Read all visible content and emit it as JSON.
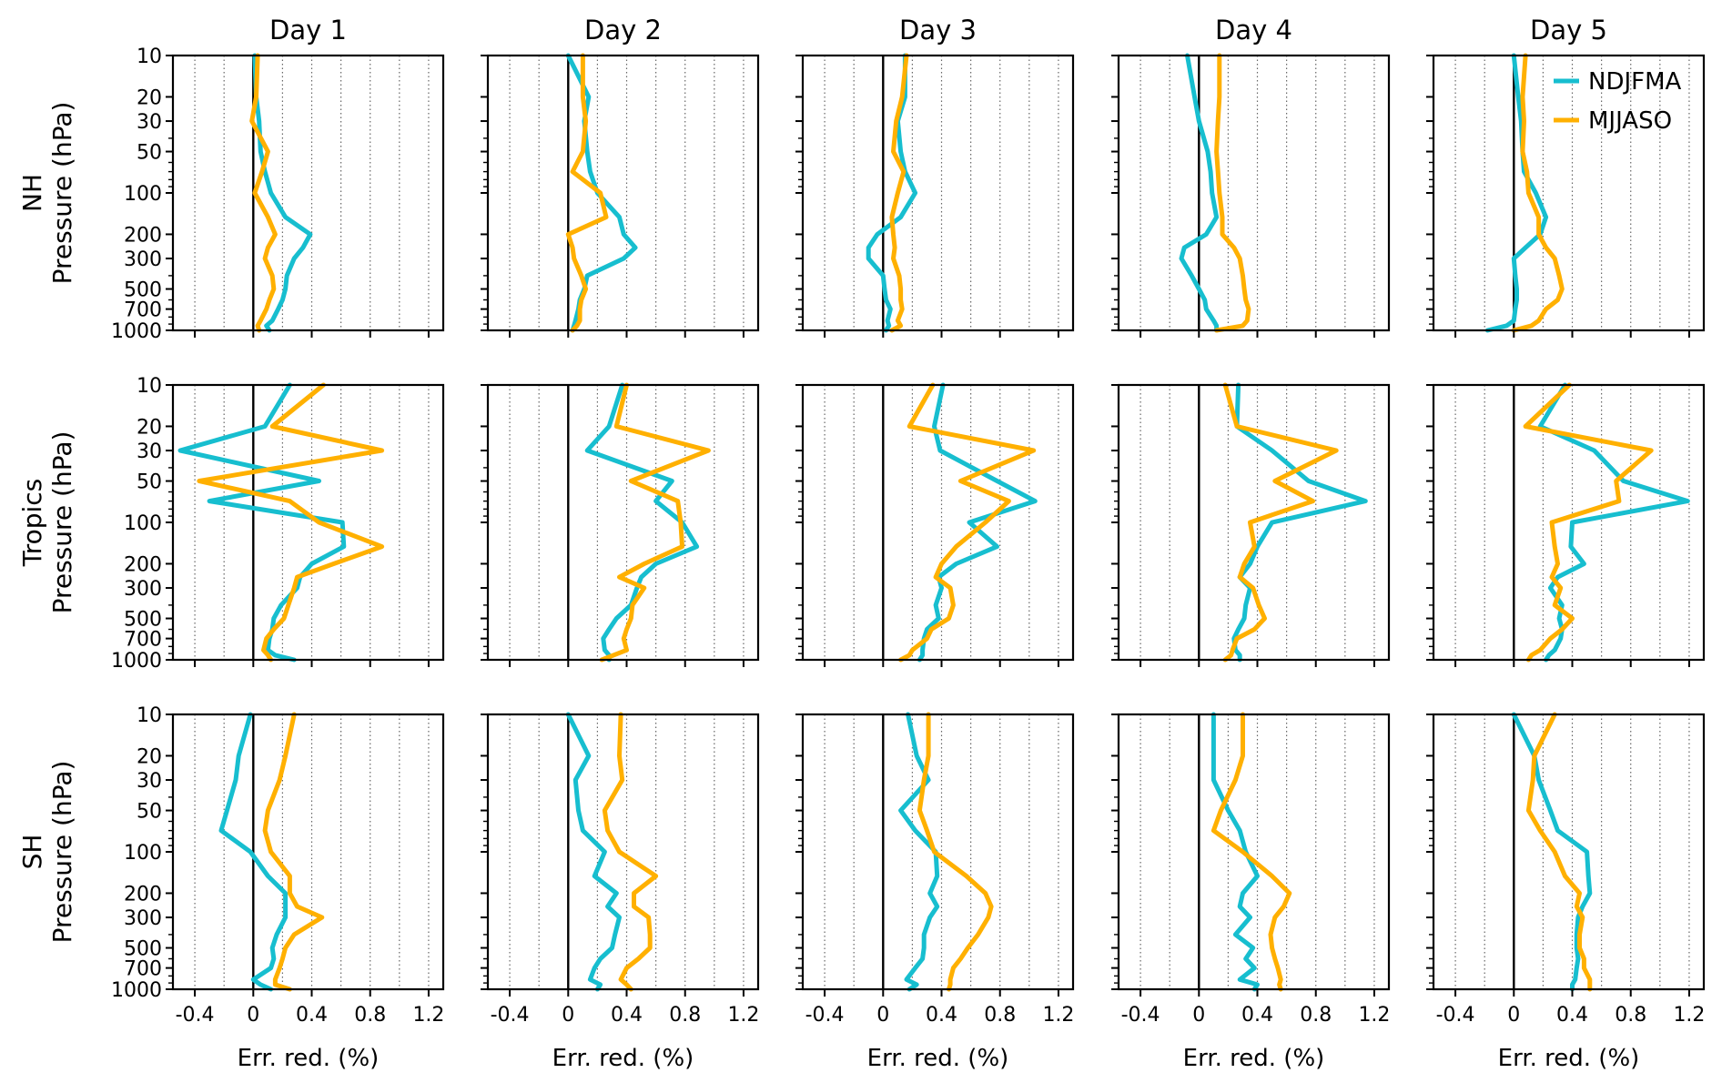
{
  "chart_data": {
    "type": "line",
    "column_titles": [
      "Day 1",
      "Day 2",
      "Day 3",
      "Day 4",
      "Day 5"
    ],
    "row_labels": [
      {
        "region": "NH",
        "ylabel": "Pressure (hPa)"
      },
      {
        "region": "Tropics",
        "ylabel": "Pressure (hPa)"
      },
      {
        "region": "SH",
        "ylabel": "Pressure (hPa)"
      }
    ],
    "xlabel": "Err. red. (%)",
    "xlim": [
      -0.55,
      1.3
    ],
    "x_ticks": [
      -0.4,
      0,
      0.4,
      0.8,
      1.2
    ],
    "x_tick_labels": [
      "-0.4",
      "0",
      "0.4",
      "0.8",
      "1.2"
    ],
    "x_grid_dotted": [
      -0.4,
      -0.2,
      0.2,
      0.4,
      0.6,
      0.8,
      1.0,
      1.2
    ],
    "ylim": [
      1000,
      10
    ],
    "y_scale": "log",
    "y_ticks": [
      10,
      20,
      30,
      50,
      100,
      200,
      300,
      500,
      700,
      1000
    ],
    "y_tick_labels": [
      "10",
      "20",
      "30",
      "50",
      "100",
      "200",
      "300",
      "500",
      "700",
      "1000"
    ],
    "legend": {
      "placement": "top-right of Day 5 NH panel",
      "entries": [
        {
          "name": "NDJFMA",
          "color": "#17becf"
        },
        {
          "name": "MJJASO",
          "color": "#ffb000"
        }
      ]
    },
    "levels": [
      10,
      20,
      30,
      50,
      70,
      100,
      150,
      200,
      250,
      300,
      400,
      500,
      600,
      700,
      850,
      925,
      1000
    ],
    "panels": [
      {
        "region": "NH",
        "day": "Day 1",
        "NDJFMA": [
          0.01,
          0.02,
          0.04,
          0.05,
          0.08,
          0.12,
          0.22,
          0.39,
          0.34,
          0.28,
          0.23,
          0.22,
          0.2,
          0.17,
          0.13,
          0.09,
          0.11
        ],
        "MJJASO": [
          0.03,
          0.02,
          -0.01,
          0.1,
          0.06,
          0.01,
          0.1,
          0.15,
          0.1,
          0.08,
          0.13,
          0.14,
          0.11,
          0.09,
          0.05,
          0.03,
          0.04
        ]
      },
      {
        "region": "NH",
        "day": "Day 2",
        "NDJFMA": [
          0.0,
          0.14,
          0.11,
          0.13,
          0.15,
          0.2,
          0.35,
          0.38,
          0.46,
          0.38,
          0.13,
          0.11,
          0.08,
          0.07,
          0.05,
          0.04,
          0.03
        ],
        "MJJASO": [
          0.1,
          0.1,
          0.12,
          0.1,
          0.03,
          0.22,
          0.26,
          0.0,
          0.03,
          0.04,
          0.09,
          0.12,
          0.09,
          0.08,
          0.08,
          0.06,
          0.03
        ]
      },
      {
        "region": "NH",
        "day": "Day 3",
        "NDJFMA": [
          0.15,
          0.15,
          0.1,
          0.12,
          0.15,
          0.22,
          0.12,
          -0.04,
          -0.1,
          -0.1,
          0.0,
          0.01,
          0.02,
          0.05,
          0.03,
          0.04,
          0.02
        ],
        "MJJASO": [
          0.16,
          0.13,
          0.09,
          0.07,
          0.14,
          0.1,
          0.06,
          0.07,
          0.08,
          0.07,
          0.11,
          0.12,
          0.12,
          0.13,
          0.1,
          0.12,
          0.06
        ]
      },
      {
        "region": "NH",
        "day": "Day 4",
        "NDJFMA": [
          -0.08,
          -0.03,
          0.0,
          0.06,
          0.08,
          0.09,
          0.12,
          0.05,
          -0.1,
          -0.12,
          -0.05,
          0.0,
          0.04,
          0.05,
          0.1,
          0.12,
          0.12
        ],
        "MJJASO": [
          0.14,
          0.14,
          0.13,
          0.12,
          0.13,
          0.14,
          0.16,
          0.16,
          0.24,
          0.28,
          0.3,
          0.31,
          0.32,
          0.34,
          0.33,
          0.3,
          0.12
        ]
      },
      {
        "region": "NH",
        "day": "Day 5",
        "NDJFMA": [
          0.0,
          0.03,
          0.05,
          0.06,
          0.07,
          0.15,
          0.22,
          0.18,
          0.08,
          0.0,
          0.01,
          0.02,
          0.02,
          0.01,
          0.0,
          -0.05,
          -0.18
        ],
        "MJJASO": [
          0.08,
          0.06,
          0.07,
          0.06,
          0.09,
          0.1,
          0.17,
          0.17,
          0.22,
          0.28,
          0.31,
          0.33,
          0.3,
          0.22,
          0.17,
          0.12,
          0.0
        ]
      },
      {
        "region": "Tropics",
        "day": "Day 1",
        "NDJFMA": [
          0.25,
          0.08,
          -0.5,
          0.45,
          -0.3,
          0.61,
          0.62,
          0.4,
          0.32,
          0.3,
          0.19,
          0.14,
          0.13,
          0.11,
          0.1,
          0.15,
          0.28
        ],
        "MJJASO": [
          0.48,
          0.13,
          0.88,
          -0.37,
          0.25,
          0.45,
          0.88,
          0.55,
          0.3,
          0.28,
          0.24,
          0.21,
          0.14,
          0.09,
          0.07,
          0.1,
          0.12
        ]
      },
      {
        "region": "Tropics",
        "day": "Day 2",
        "NDJFMA": [
          0.37,
          0.28,
          0.13,
          0.71,
          0.6,
          0.78,
          0.88,
          0.6,
          0.5,
          0.47,
          0.43,
          0.33,
          0.28,
          0.24,
          0.25,
          0.28,
          0.28
        ],
        "MJJASO": [
          0.4,
          0.33,
          0.96,
          0.43,
          0.75,
          0.77,
          0.78,
          0.52,
          0.35,
          0.52,
          0.44,
          0.43,
          0.4,
          0.38,
          0.4,
          0.31,
          0.23
        ]
      },
      {
        "region": "Tropics",
        "day": "Day 3",
        "NDJFMA": [
          0.41,
          0.35,
          0.39,
          0.78,
          1.04,
          0.59,
          0.78,
          0.5,
          0.38,
          0.4,
          0.36,
          0.38,
          0.3,
          0.28,
          0.27,
          0.27,
          0.25
        ],
        "MJJASO": [
          0.34,
          0.18,
          1.03,
          0.53,
          0.86,
          0.7,
          0.5,
          0.4,
          0.36,
          0.46,
          0.48,
          0.45,
          0.33,
          0.3,
          0.2,
          0.18,
          0.12
        ]
      },
      {
        "region": "Tropics",
        "day": "Day 4",
        "NDJFMA": [
          0.27,
          0.26,
          0.5,
          0.75,
          1.14,
          0.5,
          0.4,
          0.35,
          0.28,
          0.35,
          0.32,
          0.31,
          0.27,
          0.24,
          0.25,
          0.28,
          0.28
        ],
        "MJJASO": [
          0.18,
          0.26,
          0.94,
          0.52,
          0.78,
          0.35,
          0.38,
          0.31,
          0.28,
          0.37,
          0.41,
          0.45,
          0.38,
          0.26,
          0.23,
          0.22,
          0.18
        ]
      },
      {
        "region": "Tropics",
        "day": "Day 5",
        "NDJFMA": [
          0.35,
          0.18,
          0.55,
          0.75,
          1.19,
          0.4,
          0.39,
          0.48,
          0.3,
          0.25,
          0.33,
          0.31,
          0.33,
          0.32,
          0.28,
          0.24,
          0.22
        ],
        "MJJASO": [
          0.38,
          0.08,
          0.94,
          0.7,
          0.72,
          0.26,
          0.28,
          0.3,
          0.26,
          0.32,
          0.28,
          0.4,
          0.33,
          0.25,
          0.18,
          0.12,
          0.1
        ]
      },
      {
        "region": "SH",
        "day": "Day 1",
        "NDJFMA": [
          -0.02,
          -0.1,
          -0.12,
          -0.18,
          -0.22,
          -0.02,
          0.1,
          0.22,
          0.22,
          0.22,
          0.16,
          0.13,
          0.14,
          0.12,
          0.0,
          0.05,
          0.12
        ],
        "MJJASO": [
          0.28,
          0.22,
          0.18,
          0.1,
          0.08,
          0.12,
          0.25,
          0.25,
          0.3,
          0.47,
          0.28,
          0.22,
          0.2,
          0.18,
          0.15,
          0.15,
          0.25
        ]
      },
      {
        "region": "SH",
        "day": "Day 2",
        "NDJFMA": [
          0.0,
          0.14,
          0.05,
          0.07,
          0.1,
          0.25,
          0.18,
          0.33,
          0.27,
          0.35,
          0.32,
          0.3,
          0.22,
          0.18,
          0.15,
          0.22,
          0.2
        ],
        "MJJASO": [
          0.36,
          0.35,
          0.37,
          0.25,
          0.27,
          0.35,
          0.6,
          0.45,
          0.45,
          0.55,
          0.56,
          0.56,
          0.48,
          0.4,
          0.36,
          0.4,
          0.43
        ]
      },
      {
        "region": "SH",
        "day": "Day 3",
        "NDJFMA": [
          0.17,
          0.23,
          0.31,
          0.12,
          0.22,
          0.36,
          0.37,
          0.32,
          0.37,
          0.32,
          0.28,
          0.28,
          0.27,
          0.22,
          0.16,
          0.23,
          0.18
        ],
        "MJJASO": [
          0.31,
          0.31,
          0.28,
          0.25,
          0.3,
          0.35,
          0.57,
          0.7,
          0.74,
          0.72,
          0.65,
          0.58,
          0.53,
          0.48,
          0.46,
          0.46,
          0.45
        ]
      },
      {
        "region": "SH",
        "day": "Day 4",
        "NDJFMA": [
          0.1,
          0.1,
          0.1,
          0.2,
          0.28,
          0.32,
          0.4,
          0.3,
          0.28,
          0.35,
          0.25,
          0.37,
          0.32,
          0.38,
          0.28,
          0.4,
          0.38
        ],
        "MJJASO": [
          0.3,
          0.3,
          0.25,
          0.15,
          0.1,
          0.3,
          0.5,
          0.62,
          0.58,
          0.52,
          0.49,
          0.5,
          0.52,
          0.54,
          0.56,
          0.55,
          0.56
        ]
      },
      {
        "region": "SH",
        "day": "Day 5",
        "NDJFMA": [
          0.0,
          0.14,
          0.17,
          0.25,
          0.3,
          0.5,
          0.51,
          0.52,
          0.47,
          0.44,
          0.43,
          0.43,
          0.44,
          0.43,
          0.42,
          0.4,
          0.4
        ],
        "MJJASO": [
          0.28,
          0.14,
          0.13,
          0.1,
          0.18,
          0.28,
          0.35,
          0.45,
          0.43,
          0.47,
          0.45,
          0.45,
          0.48,
          0.48,
          0.52,
          0.52,
          0.52
        ]
      }
    ]
  }
}
